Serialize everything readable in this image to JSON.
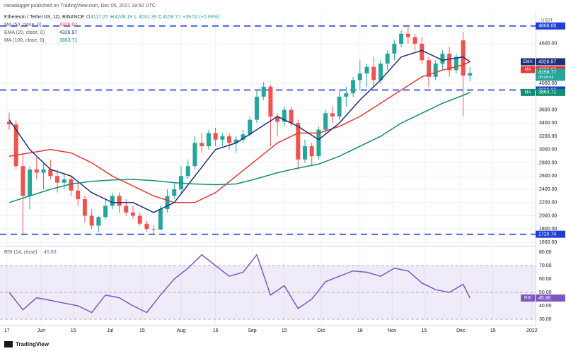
{
  "header": {
    "publisher": "ranadagger published on TradingView.com, Dec 05, 2021 18:50 UTC"
  },
  "chart_data": {
    "type": "candlestick",
    "title": "Ethereum / TetherUS, 1D, BINANCE",
    "ohlc_prefixes": [
      "O",
      "H",
      "L",
      "C"
    ],
    "change": "+39.52 (+0.96%)",
    "currency": "USDT",
    "countdown": "05:09:43",
    "up_color": "#26a69a",
    "down_color": "#ef5350",
    "x": [
      1,
      4,
      7,
      10,
      13,
      16,
      19,
      22,
      25,
      28,
      31,
      34,
      37,
      40,
      43,
      46,
      49,
      52,
      55,
      58,
      61,
      64,
      67,
      70,
      73,
      76,
      79,
      82,
      85,
      88,
      91,
      94,
      97,
      100,
      103,
      106,
      109,
      112,
      115,
      118,
      121,
      124,
      127,
      130,
      133,
      136,
      139,
      142,
      145,
      148,
      151,
      154,
      157,
      160,
      163,
      166,
      169,
      172,
      175,
      178,
      181,
      184,
      187,
      190,
      193,
      196,
      199,
      202
    ],
    "candles": [
      [
        3420,
        3560,
        3300,
        3380
      ],
      [
        3380,
        3440,
        2700,
        2750
      ],
      [
        2750,
        2950,
        1730,
        2300
      ],
      [
        2300,
        2750,
        2100,
        2700
      ],
      [
        2700,
        2900,
        2550,
        2650
      ],
      [
        2650,
        2800,
        2400,
        2700
      ],
      [
        2700,
        2850,
        2550,
        2600
      ],
      [
        2600,
        2700,
        2350,
        2500
      ],
      [
        2500,
        2650,
        2400,
        2550
      ],
      [
        2550,
        2600,
        2300,
        2380
      ],
      [
        2380,
        2500,
        2150,
        2250
      ],
      [
        2250,
        2300,
        1900,
        2000
      ],
      [
        2000,
        2100,
        1800,
        1850
      ],
      [
        1850,
        2000,
        1750,
        1980
      ],
      [
        1980,
        2250,
        1950,
        2150
      ],
      [
        2150,
        2350,
        2100,
        2300
      ],
      [
        2300,
        2350,
        2050,
        2150
      ],
      [
        2150,
        2250,
        2000,
        2050
      ],
      [
        2050,
        2150,
        1950,
        2000
      ],
      [
        2000,
        2050,
        1850,
        1880
      ],
      [
        1880,
        1920,
        1760,
        1800
      ],
      [
        1800,
        1850,
        1720,
        1790
      ],
      [
        1790,
        2150,
        1780,
        2100
      ],
      [
        2100,
        2400,
        2050,
        2300
      ],
      [
        2300,
        2500,
        2250,
        2400
      ],
      [
        2400,
        2750,
        2350,
        2600
      ],
      [
        2600,
        2850,
        2550,
        2750
      ],
      [
        2750,
        3200,
        2700,
        3100
      ],
      [
        3100,
        3250,
        2950,
        3050
      ],
      [
        3050,
        3300,
        3000,
        3250
      ],
      [
        3250,
        3330,
        3050,
        3150
      ],
      [
        3150,
        3250,
        3050,
        3200
      ],
      [
        3200,
        3250,
        3000,
        3100
      ],
      [
        3100,
        3200,
        2950,
        3150
      ],
      [
        3150,
        3300,
        3100,
        3230
      ],
      [
        3230,
        3500,
        3200,
        3450
      ],
      [
        3450,
        3900,
        3400,
        3800
      ],
      [
        3800,
        4020,
        3750,
        3950
      ],
      [
        3950,
        3980,
        3050,
        3500
      ],
      [
        3500,
        3550,
        3200,
        3420
      ],
      [
        3420,
        3650,
        3350,
        3600
      ],
      [
        3600,
        3650,
        3350,
        3400
      ],
      [
        3400,
        3450,
        2700,
        2850
      ],
      [
        2850,
        3150,
        2800,
        3050
      ],
      [
        3050,
        3100,
        2750,
        2900
      ],
      [
        2900,
        3350,
        2850,
        3300
      ],
      [
        3300,
        3600,
        3250,
        3550
      ],
      [
        3550,
        3650,
        3400,
        3500
      ],
      [
        3500,
        3900,
        3450,
        3800
      ],
      [
        3800,
        3950,
        3650,
        3850
      ],
      [
        3850,
        4100,
        3800,
        4050
      ],
      [
        4050,
        4350,
        3900,
        4150
      ],
      [
        4150,
        4300,
        3950,
        4250
      ],
      [
        4250,
        4400,
        3950,
        4050
      ],
      [
        4050,
        4350,
        4000,
        4300
      ],
      [
        4300,
        4500,
        4200,
        4450
      ],
      [
        4450,
        4650,
        4350,
        4600
      ],
      [
        4600,
        4800,
        4550,
        4750
      ],
      [
        4750,
        4870,
        4600,
        4700
      ],
      [
        4700,
        4750,
        4500,
        4600
      ],
      [
        4600,
        4700,
        4300,
        4350
      ],
      [
        4350,
        4400,
        3950,
        4100
      ],
      [
        4100,
        4350,
        4050,
        4300
      ],
      [
        4300,
        4500,
        4200,
        4450
      ],
      [
        4450,
        4550,
        4100,
        4200
      ],
      [
        4200,
        4450,
        4150,
        4400
      ],
      [
        4650,
        4780,
        3500,
        4117.25
      ],
      [
        4117.25,
        4248.19,
        4031.39,
        4156.77
      ]
    ],
    "xlim": [
      -3,
      230.6
    ],
    "xticks": [
      {
        "value": 0,
        "label": "17"
      },
      {
        "value": 15,
        "label": "Jun"
      },
      {
        "value": 29,
        "label": "15"
      },
      {
        "value": 45,
        "label": "Jul"
      },
      {
        "value": 59,
        "label": "15"
      },
      {
        "value": 76,
        "label": "Aug"
      },
      {
        "value": 91,
        "label": "16"
      },
      {
        "value": 107,
        "label": "Sep"
      },
      {
        "value": 121,
        "label": "15"
      },
      {
        "value": 137,
        "label": "Oct"
      },
      {
        "value": 154,
        "label": "18"
      },
      {
        "value": 168,
        "label": "Nov"
      },
      {
        "value": 182,
        "label": "15"
      },
      {
        "value": 198,
        "label": "Dec"
      },
      {
        "value": 212,
        "label": "15"
      },
      {
        "value": 229,
        "label": "2022"
      }
    ],
    "ylim": [
      1557,
      5047
    ],
    "yticks": [
      {
        "value": 1600,
        "label": "1600.00"
      },
      {
        "value": 1800,
        "label": "1800.00"
      },
      {
        "value": 2000,
        "label": "2000.00"
      },
      {
        "value": 2200,
        "label": "2200.00"
      },
      {
        "value": 2400,
        "label": "2400.00"
      },
      {
        "value": 2600,
        "label": "2600.00"
      },
      {
        "value": 2800,
        "label": "2800.00"
      },
      {
        "value": 3000,
        "label": "3000.00"
      },
      {
        "value": 3200,
        "label": "3200.00"
      },
      {
        "value": 3400,
        "label": "3400.00"
      },
      {
        "value": 3600,
        "label": "3600.00"
      },
      {
        "value": 4000,
        "label": "4000.00"
      },
      {
        "value": 4600,
        "label": "4600.00"
      }
    ],
    "grid": true,
    "series": [
      {
        "name": "MA (50, close, 0)",
        "tag": "MA",
        "color": "#e53935",
        "x": [
          1,
          10,
          19,
          28,
          37,
          46,
          55,
          64,
          73,
          82,
          91,
          100,
          109,
          118,
          127,
          136,
          145,
          154,
          163,
          172,
          181,
          190,
          199,
          202
        ],
        "values": [
          2900,
          2950,
          3000,
          2950,
          2800,
          2600,
          2450,
          2300,
          2200,
          2200,
          2350,
          2600,
          2850,
          3100,
          3250,
          3250,
          3350,
          3500,
          3700,
          3900,
          4100,
          4200,
          4280,
          4326.02
        ]
      },
      {
        "name": "EMA (20, close, 0)",
        "tag": "EMA",
        "color": "#1f2f7a",
        "x": [
          1,
          10,
          19,
          28,
          37,
          46,
          55,
          64,
          73,
          82,
          91,
          100,
          109,
          118,
          127,
          136,
          145,
          154,
          163,
          172,
          181,
          190,
          199,
          202
        ],
        "values": [
          3450,
          3000,
          2700,
          2600,
          2350,
          2200,
          2200,
          2050,
          2200,
          2600,
          3000,
          3100,
          3300,
          3500,
          3350,
          3150,
          3400,
          3750,
          4050,
          4400,
          4500,
          4350,
          4400,
          4326.97
        ]
      },
      {
        "name": "MA (100, close, 0)",
        "tag": "MA",
        "color": "#138d75",
        "x": [
          1,
          10,
          19,
          28,
          37,
          46,
          55,
          64,
          73,
          82,
          91,
          100,
          109,
          118,
          127,
          136,
          145,
          154,
          163,
          172,
          181,
          190,
          199,
          202
        ],
        "values": [
          2200,
          2300,
          2400,
          2480,
          2520,
          2540,
          2550,
          2530,
          2500,
          2480,
          2470,
          2480,
          2560,
          2650,
          2720,
          2780,
          2900,
          3050,
          3200,
          3400,
          3550,
          3700,
          3820,
          3863.71
        ]
      }
    ],
    "levels": [
      {
        "value": 4868,
        "label": "4868.00"
      },
      {
        "value": 3900,
        "label": "3900.00"
      },
      {
        "value": 1720.74,
        "label": "1720.74"
      }
    ],
    "level_color": "#1d3fd8",
    "rsi": {
      "name": "RSI (14, close)",
      "tag": "RSI",
      "color": "#7e57c2",
      "last_label": "45.80",
      "ylim": [
        25.8,
        83.7
      ],
      "yticks": [
        {
          "value": 30,
          "label": "30.00"
        },
        {
          "value": 40,
          "label": "40.00"
        },
        {
          "value": 50,
          "label": "50.00"
        },
        {
          "value": 60,
          "label": "60.00"
        },
        {
          "value": 70,
          "label": "70.00"
        },
        {
          "value": 80,
          "label": "80.00"
        }
      ],
      "band": [
        30,
        70
      ],
      "guides": [
        30,
        50,
        70
      ],
      "x": [
        1,
        7,
        13,
        19,
        25,
        31,
        37,
        43,
        49,
        55,
        61,
        67,
        73,
        79,
        85,
        91,
        97,
        103,
        109,
        115,
        121,
        127,
        133,
        139,
        145,
        151,
        157,
        163,
        169,
        175,
        181,
        187,
        193,
        199,
        202
      ],
      "values": [
        50,
        37,
        46,
        44,
        42,
        40,
        35,
        48,
        46,
        40,
        35,
        48,
        60,
        68,
        78,
        70,
        62,
        65,
        78,
        48,
        55,
        38,
        45,
        58,
        62,
        66,
        65,
        62,
        68,
        66,
        57,
        52,
        50,
        56,
        45.8
      ]
    }
  },
  "footer": {
    "brand": "TradingView"
  }
}
